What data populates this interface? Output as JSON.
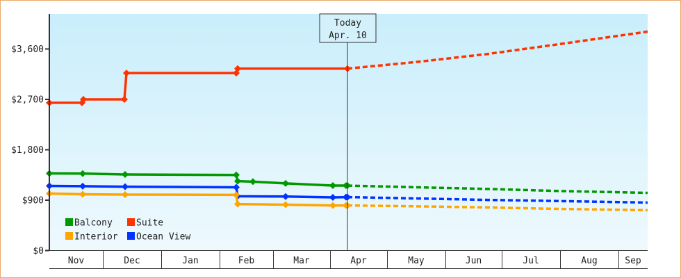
{
  "chart_data": {
    "type": "line",
    "title": "",
    "xlabel": "",
    "ylabel": "",
    "ylim": [
      0,
      4200
    ],
    "yticks": [
      0,
      900,
      1800,
      2700,
      3600
    ],
    "ytick_labels": [
      "$0",
      "$900",
      "$1,800",
      "$2,700",
      "$3,600"
    ],
    "months": [
      "Nov",
      "Dec",
      "Jan",
      "Feb",
      "Mar",
      "Apr",
      "May",
      "Jun",
      "Jul",
      "Aug",
      "Sep"
    ],
    "today_marker": {
      "line1": "Today",
      "line2": "Apr. 10"
    },
    "legend": [
      {
        "name": "Balcony",
        "color": "#009900"
      },
      {
        "name": "Suite",
        "color": "#ff3300"
      },
      {
        "name": "Interior",
        "color": "#ffa500"
      },
      {
        "name": "Ocean View",
        "color": "#0033ff"
      }
    ],
    "series": [
      {
        "name": "Suite",
        "color": "#ff3300",
        "historical": [
          [
            70,
            2640
          ],
          [
            117,
            2640
          ],
          [
            119,
            2700
          ],
          [
            178,
            2700
          ],
          [
            181,
            3170
          ],
          [
            339,
            3170
          ],
          [
            341,
            3250
          ],
          [
            499,
            3250
          ]
        ],
        "markers": [
          [
            70,
            2640
          ],
          [
            117,
            2640
          ],
          [
            119,
            2700
          ],
          [
            178,
            2700
          ],
          [
            181,
            3170
          ],
          [
            339,
            3170
          ],
          [
            341,
            3250
          ],
          [
            499,
            3250
          ]
        ],
        "forecast": [
          [
            499,
            3250
          ],
          [
            600,
            3370
          ],
          [
            700,
            3510
          ],
          [
            800,
            3680
          ],
          [
            931,
            3910
          ]
        ]
      },
      {
        "name": "Balcony",
        "color": "#009900",
        "historical": [
          [
            70,
            1378
          ],
          [
            118,
            1375
          ],
          [
            179,
            1360
          ],
          [
            339,
            1350
          ],
          [
            341,
            1240
          ],
          [
            363,
            1230
          ],
          [
            410,
            1200
          ],
          [
            478,
            1160
          ],
          [
            499,
            1160
          ]
        ],
        "markers": [
          [
            70,
            1378
          ],
          [
            118,
            1375
          ],
          [
            179,
            1360
          ],
          [
            339,
            1350
          ],
          [
            341,
            1240
          ],
          [
            363,
            1230
          ],
          [
            410,
            1200
          ],
          [
            478,
            1160
          ],
          [
            497,
            1160
          ],
          [
            499,
            1160
          ]
        ],
        "forecast": [
          [
            499,
            1160
          ],
          [
            600,
            1130
          ],
          [
            700,
            1100
          ],
          [
            800,
            1065
          ],
          [
            931,
            1030
          ]
        ]
      },
      {
        "name": "Ocean View",
        "color": "#0033ff",
        "historical": [
          [
            70,
            1155
          ],
          [
            118,
            1150
          ],
          [
            179,
            1140
          ],
          [
            339,
            1130
          ],
          [
            341,
            970
          ],
          [
            410,
            965
          ],
          [
            478,
            950
          ],
          [
            499,
            955
          ]
        ],
        "markers": [
          [
            70,
            1155
          ],
          [
            118,
            1150
          ],
          [
            179,
            1140
          ],
          [
            339,
            1130
          ],
          [
            341,
            970
          ],
          [
            410,
            965
          ],
          [
            478,
            950
          ],
          [
            497,
            955
          ],
          [
            499,
            955
          ]
        ],
        "forecast": [
          [
            499,
            955
          ],
          [
            600,
            930
          ],
          [
            700,
            905
          ],
          [
            800,
            885
          ],
          [
            931,
            857
          ]
        ]
      },
      {
        "name": "Interior",
        "color": "#ffa500",
        "historical": [
          [
            70,
            1018
          ],
          [
            118,
            1005
          ],
          [
            179,
            1000
          ],
          [
            339,
            995
          ],
          [
            341,
            830
          ],
          [
            410,
            820
          ],
          [
            478,
            805
          ],
          [
            499,
            806
          ]
        ],
        "markers": [
          [
            70,
            1018
          ],
          [
            118,
            1005
          ],
          [
            179,
            1000
          ],
          [
            339,
            995
          ],
          [
            341,
            830
          ],
          [
            410,
            820
          ],
          [
            478,
            805
          ],
          [
            497,
            806
          ],
          [
            499,
            806
          ]
        ],
        "forecast": [
          [
            499,
            806
          ],
          [
            600,
            790
          ],
          [
            700,
            770
          ],
          [
            800,
            745
          ],
          [
            931,
            720
          ]
        ]
      }
    ],
    "grid": false,
    "legend_position": "lower-left inside plot"
  }
}
